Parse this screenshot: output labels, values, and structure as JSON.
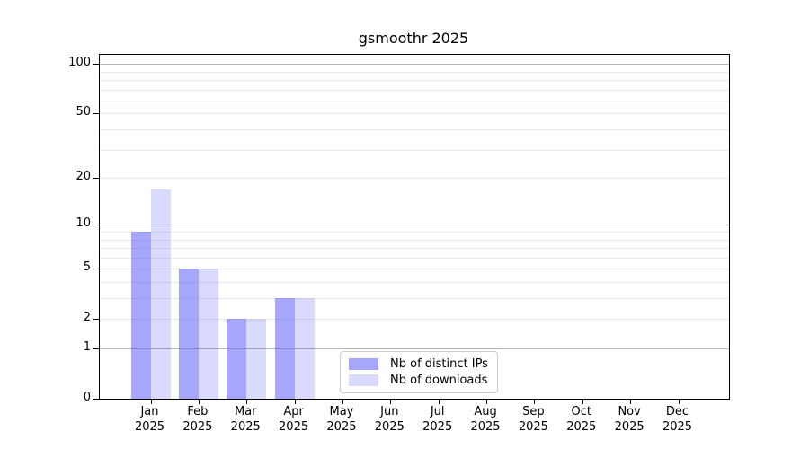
{
  "chart_data": {
    "type": "bar",
    "title": "gsmoothr 2025",
    "year_label": "2025",
    "categories": [
      "Jan",
      "Feb",
      "Mar",
      "Apr",
      "May",
      "Jun",
      "Jul",
      "Aug",
      "Sep",
      "Oct",
      "Nov",
      "Dec"
    ],
    "series": [
      {
        "name": "Nb of distinct IPs",
        "color": "rgba(85,85,245,0.52)",
        "values": [
          9,
          5,
          2,
          3,
          0,
          0,
          0,
          0,
          0,
          0,
          0,
          0
        ]
      },
      {
        "name": "Nb of downloads",
        "color": "rgba(85,85,245,0.22)",
        "values": [
          17,
          5,
          2,
          3,
          0,
          0,
          0,
          0,
          0,
          0,
          0,
          0
        ]
      }
    ],
    "yscale": "log1p",
    "ylim": [
      0,
      113.7
    ],
    "y_ticks": [
      0,
      1,
      2,
      5,
      10,
      20,
      50,
      100
    ],
    "grid_major": [
      1,
      10,
      100
    ],
    "grid_minor": [
      2,
      3,
      4,
      5,
      6,
      7,
      8,
      9,
      20,
      30,
      40,
      50,
      60,
      70,
      80,
      90
    ],
    "grid": true,
    "legend_position": "lower center"
  },
  "colors": {
    "grid_major": "#b3b3b3",
    "grid_minor": "#e9e9e9",
    "spine": "#000000",
    "text": "#000000",
    "legend_border": "#cccccc"
  }
}
